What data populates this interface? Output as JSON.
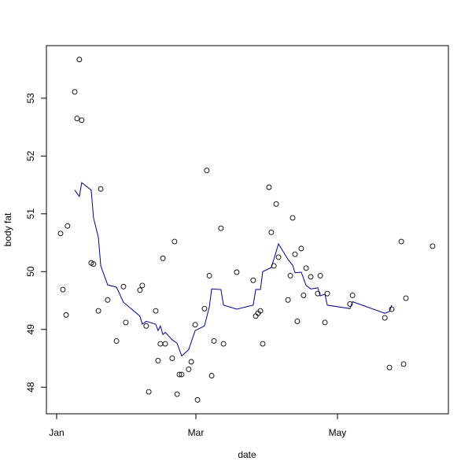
{
  "chart_data": {
    "type": "scatter",
    "xlabel": "date",
    "ylabel": "body fat",
    "xlim": [
      -4.4,
      168.8
    ],
    "ylim": [
      47.54,
      53.91
    ],
    "xticks": [
      {
        "value": 0,
        "label": "Jan"
      },
      {
        "value": 60,
        "label": "Mar"
      },
      {
        "value": 121,
        "label": "May"
      }
    ],
    "yticks": [
      48,
      49,
      50,
      51,
      52,
      53
    ],
    "points": {
      "color": "#000000",
      "x": [
        1.7,
        2.7,
        4.1,
        4.7,
        7.8,
        8.8,
        9.8,
        10.8,
        14.9,
        15.9,
        18.0,
        19.0,
        22.0,
        25.8,
        28.8,
        29.8,
        35.9,
        36.9,
        38.6,
        39.7,
        42.7,
        43.7,
        44.7,
        45.8,
        46.8,
        49.8,
        50.8,
        51.9,
        52.9,
        53.9,
        56.9,
        58.0,
        59.7,
        60.7,
        63.7,
        64.7,
        65.8,
        66.8,
        67.8,
        70.8,
        71.9,
        77.6,
        84.7,
        85.8,
        86.8,
        87.8,
        88.8,
        91.5,
        92.5,
        93.6,
        94.6,
        95.6,
        99.7,
        100.7,
        101.7,
        102.7,
        103.7,
        105.4,
        106.4,
        107.5,
        109.5,
        112.5,
        113.6,
        115.6,
        116.6,
        126.4,
        127.5,
        141.4,
        143.4,
        144.4,
        148.5,
        149.5,
        150.5,
        162.0
      ],
      "values": [
        50.66,
        49.69,
        49.25,
        50.79,
        53.11,
        52.65,
        53.67,
        52.62,
        50.15,
        50.13,
        49.32,
        51.43,
        49.51,
        48.8,
        49.74,
        49.12,
        49.68,
        49.76,
        49.06,
        47.92,
        49.32,
        48.46,
        48.75,
        50.23,
        48.75,
        48.5,
        50.52,
        47.88,
        48.22,
        48.22,
        48.31,
        48.44,
        49.08,
        47.78,
        49.36,
        51.75,
        49.93,
        48.2,
        48.8,
        50.75,
        48.75,
        49.99,
        49.85,
        49.23,
        49.28,
        49.32,
        48.75,
        51.46,
        50.68,
        50.1,
        51.17,
        50.25,
        49.51,
        49.93,
        50.93,
        50.3,
        49.14,
        50.4,
        49.59,
        50.06,
        49.91,
        49.62,
        49.93,
        49.12,
        49.62,
        49.44,
        49.59,
        49.2,
        48.34,
        49.35,
        50.52,
        48.4,
        49.54,
        50.44
      ]
    },
    "smooth": {
      "color": "#00008b",
      "x": [
        7.8,
        9.8,
        10.8,
        14.9,
        15.9,
        18.0,
        19.0,
        22.0,
        25.8,
        28.8,
        35.9,
        36.9,
        38.6,
        42.7,
        43.7,
        44.7,
        45.8,
        46.8,
        49.8,
        51.9,
        53.9,
        56.9,
        59.7,
        63.7,
        65.8,
        66.8,
        70.8,
        71.9,
        77.6,
        84.7,
        85.8,
        87.8,
        88.8,
        92.5,
        95.6,
        99.7,
        101.7,
        102.7,
        105.4,
        107.5,
        109.5,
        112.5,
        113.6,
        115.6,
        116.6,
        126.4,
        127.5,
        141.4,
        143.4,
        144.4
      ],
      "values": [
        51.41,
        51.3,
        51.54,
        51.41,
        50.93,
        50.59,
        50.1,
        49.77,
        49.73,
        49.47,
        49.23,
        49.09,
        49.14,
        49.09,
        48.98,
        49.06,
        48.91,
        48.95,
        48.82,
        48.76,
        48.54,
        48.65,
        48.98,
        49.06,
        49.39,
        49.7,
        49.69,
        49.42,
        49.35,
        49.42,
        49.69,
        49.69,
        50.0,
        50.07,
        50.48,
        50.21,
        50.11,
        49.98,
        49.99,
        49.76,
        49.7,
        49.72,
        49.58,
        49.61,
        49.42,
        49.36,
        49.48,
        49.28,
        49.31,
        49.42
      ]
    }
  }
}
